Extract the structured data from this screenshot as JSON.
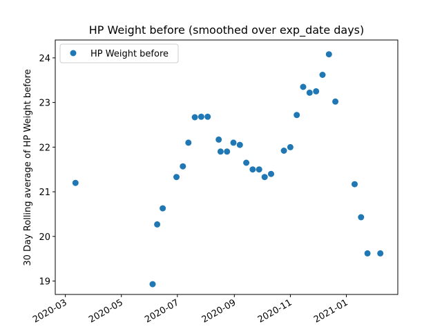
{
  "chart_data": {
    "type": "scatter",
    "title": "HP Weight before (smoothed over exp_date days)",
    "xlabel": "",
    "ylabel": "30 Day Rolling average of HP Weight before",
    "legend": {
      "position": "top-left",
      "entries": [
        "HP Weight before"
      ]
    },
    "grid": false,
    "x_axis": {
      "type": "date",
      "range": [
        "2020-02-19",
        "2021-02-26"
      ],
      "ticks": [
        "2020-03",
        "2020-05",
        "2020-07",
        "2020-09",
        "2020-11",
        "2021-01"
      ]
    },
    "y_axis": {
      "range": [
        18.7,
        24.4
      ],
      "ticks": [
        19,
        20,
        21,
        22,
        23,
        24
      ]
    },
    "series": [
      {
        "name": "HP Weight before",
        "color": "#1f77b4",
        "marker": "circle",
        "points": [
          {
            "x": "2020-03-12",
            "y": 21.2
          },
          {
            "x": "2020-06-04",
            "y": 18.93
          },
          {
            "x": "2020-06-09",
            "y": 20.27
          },
          {
            "x": "2020-06-15",
            "y": 20.63
          },
          {
            "x": "2020-06-30",
            "y": 21.33
          },
          {
            "x": "2020-07-07",
            "y": 21.57
          },
          {
            "x": "2020-07-13",
            "y": 22.1
          },
          {
            "x": "2020-07-20",
            "y": 22.67
          },
          {
            "x": "2020-07-27",
            "y": 22.68
          },
          {
            "x": "2020-08-03",
            "y": 22.68
          },
          {
            "x": "2020-08-15",
            "y": 22.17
          },
          {
            "x": "2020-08-17",
            "y": 21.9
          },
          {
            "x": "2020-08-24",
            "y": 21.9
          },
          {
            "x": "2020-08-31",
            "y": 22.1
          },
          {
            "x": "2020-09-07",
            "y": 22.05
          },
          {
            "x": "2020-09-14",
            "y": 21.65
          },
          {
            "x": "2020-09-21",
            "y": 21.5
          },
          {
            "x": "2020-09-28",
            "y": 21.5
          },
          {
            "x": "2020-10-04",
            "y": 21.33
          },
          {
            "x": "2020-10-11",
            "y": 21.4
          },
          {
            "x": "2020-10-25",
            "y": 21.92
          },
          {
            "x": "2020-11-01",
            "y": 22.0
          },
          {
            "x": "2020-11-08",
            "y": 22.72
          },
          {
            "x": "2020-11-15",
            "y": 23.35
          },
          {
            "x": "2020-11-22",
            "y": 23.22
          },
          {
            "x": "2020-11-29",
            "y": 23.25
          },
          {
            "x": "2020-12-06",
            "y": 23.62
          },
          {
            "x": "2020-12-13",
            "y": 24.08
          },
          {
            "x": "2020-12-20",
            "y": 23.02
          },
          {
            "x": "2021-01-10",
            "y": 21.17
          },
          {
            "x": "2021-01-17",
            "y": 20.43
          },
          {
            "x": "2021-01-24",
            "y": 19.62
          },
          {
            "x": "2021-02-07",
            "y": 19.62
          }
        ]
      }
    ]
  }
}
